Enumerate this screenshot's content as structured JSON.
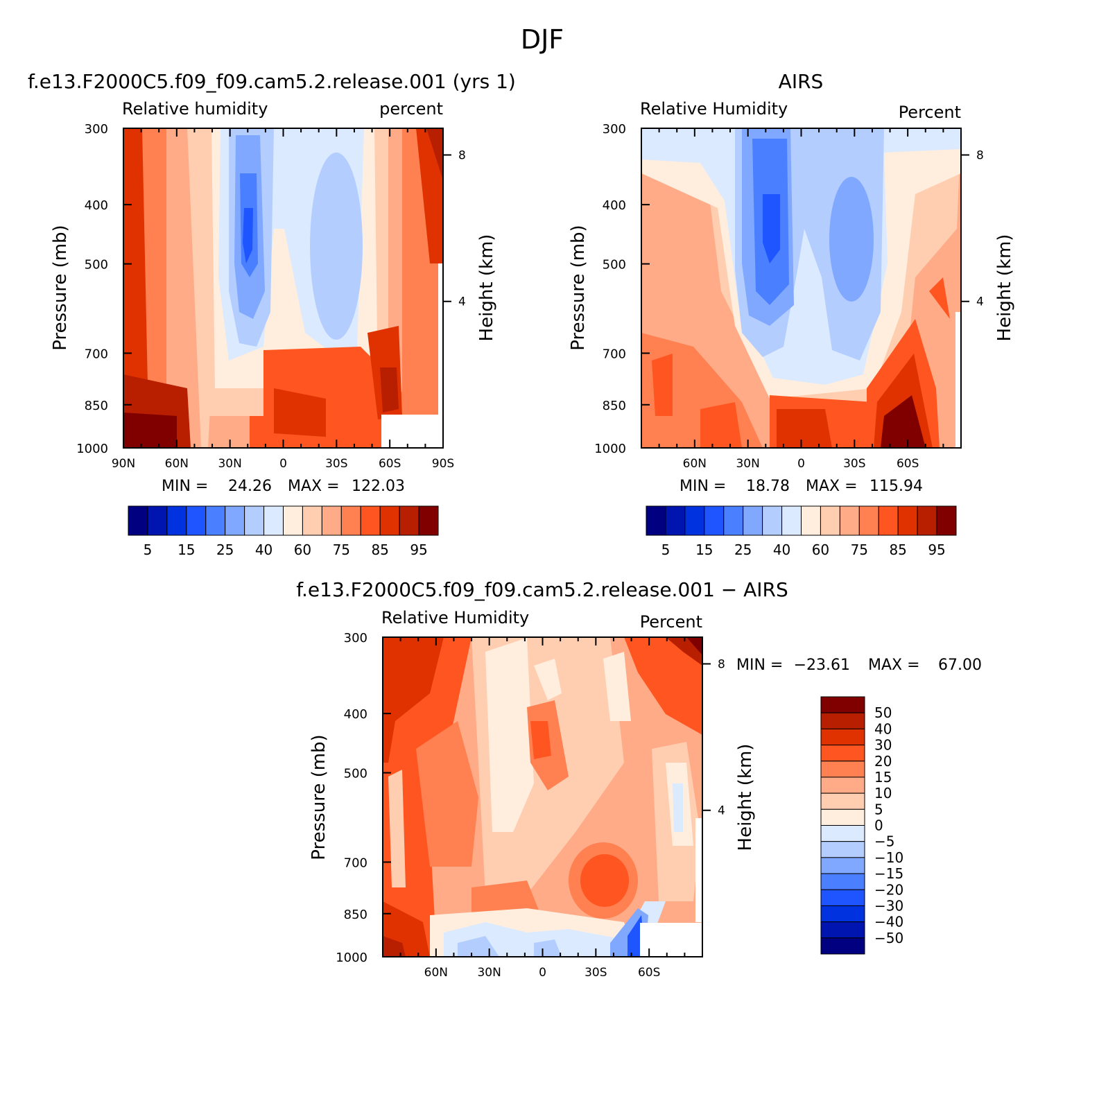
{
  "figure_title": "DJF",
  "colors": {
    "abs_scale": [
      "#000080",
      "#0015b0",
      "#0032e0",
      "#1f55ff",
      "#4a7fff",
      "#80a8ff",
      "#b3cdff",
      "#dbeaff",
      "#ffeedd",
      "#ffcdb0",
      "#ffab88",
      "#ff8050",
      "#ff5520",
      "#e03200",
      "#b81e00",
      "#800000"
    ],
    "diff_scale": [
      "#000080",
      "#0015b0",
      "#0032e0",
      "#1f55ff",
      "#4a7fff",
      "#80a8ff",
      "#b3cdff",
      "#dbeaff",
      "#ffeedd",
      "#ffcdb0",
      "#ffab88",
      "#ff8050",
      "#ff5520",
      "#e03200",
      "#b81e00",
      "#800000"
    ]
  },
  "chart_data": [
    {
      "type": "heatmap",
      "title": "f.e13.F2000C5.f09_f09.cam5.2.release.001 (yrs 1)",
      "left_subtitle": "Relative humidity",
      "right_subtitle": "percent",
      "ylabel": "Pressure (mb)",
      "ylabel_right": "Height (km)",
      "x_ticks": [
        "90N",
        "60N",
        "30N",
        "0",
        "30S",
        "60S",
        "90S"
      ],
      "y_ticks": [
        "300",
        "400",
        "500",
        "700",
        "850",
        "1000"
      ],
      "height_ticks": [
        "8",
        "4"
      ],
      "min_label": "MIN =",
      "min_value": "24.26",
      "max_label": "MAX =",
      "max_value": "122.03",
      "colorbar_labels": [
        "5",
        "15",
        "25",
        "40",
        "60",
        "75",
        "85",
        "95"
      ]
    },
    {
      "type": "heatmap",
      "title": "AIRS",
      "left_subtitle": "Relative Humidity",
      "right_subtitle": "Percent",
      "ylabel": "Pressure (mb)",
      "ylabel_right": "Height (km)",
      "x_ticks": [
        "60N",
        "30N",
        "0",
        "30S",
        "60S"
      ],
      "y_ticks": [
        "300",
        "400",
        "500",
        "700",
        "850",
        "1000"
      ],
      "height_ticks": [
        "8",
        "4"
      ],
      "min_label": "MIN =",
      "min_value": "18.78",
      "max_label": "MAX =",
      "max_value": "115.94",
      "colorbar_labels": [
        "5",
        "15",
        "25",
        "40",
        "60",
        "75",
        "85",
        "95"
      ]
    },
    {
      "type": "heatmap",
      "title": "f.e13.F2000C5.f09_f09.cam5.2.release.001 − AIRS",
      "left_subtitle": "Relative Humidity",
      "right_subtitle": "Percent",
      "ylabel": "Pressure (mb)",
      "ylabel_right": "Height (km)",
      "x_ticks": [
        "60N",
        "30N",
        "0",
        "30S",
        "60S"
      ],
      "y_ticks": [
        "300",
        "400",
        "500",
        "700",
        "850",
        "1000"
      ],
      "height_ticks": [
        "8",
        "4"
      ],
      "min_label": "MIN =",
      "min_value": "−23.61",
      "max_label": "MAX =",
      "max_value": "67.00",
      "colorbar_labels": [
        "50",
        "40",
        "30",
        "20",
        "15",
        "10",
        "5",
        "0",
        "−5",
        "−10",
        "−15",
        "−20",
        "−30",
        "−40",
        "−50"
      ]
    }
  ]
}
